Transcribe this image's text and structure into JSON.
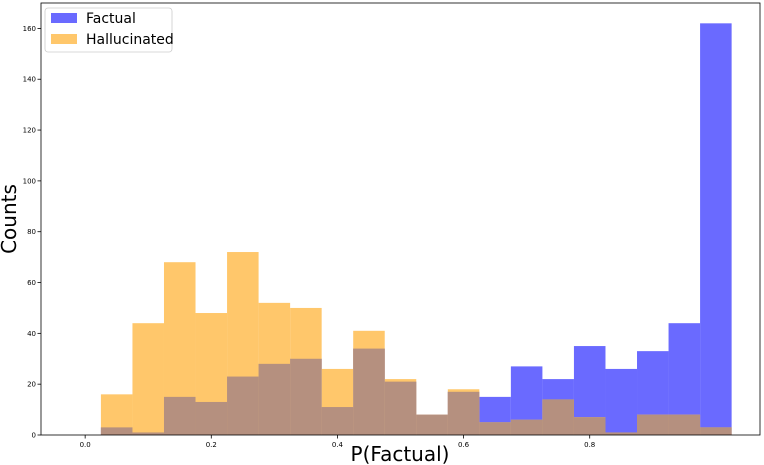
{
  "chart_data": {
    "type": "bar",
    "subtype": "overlapping-histogram",
    "title": "",
    "xlabel": "P(Factual)",
    "ylabel": "Counts",
    "xlim": [
      -0.07,
      1.07
    ],
    "ylim": [
      0,
      170
    ],
    "x_ticks": [
      "0.0",
      "0.2",
      "0.4",
      "0.6",
      "0.8"
    ],
    "y_ticks": [
      "0",
      "20",
      "40",
      "60",
      "80",
      "100",
      "120",
      "140",
      "160"
    ],
    "grid": false,
    "legend_position": "top-left",
    "bin_edges": [
      0.025,
      0.075,
      0.125,
      0.175,
      0.225,
      0.275,
      0.325,
      0.375,
      0.425,
      0.475,
      0.525,
      0.575,
      0.625,
      0.675,
      0.725,
      0.775,
      0.825,
      0.875,
      0.925,
      0.975,
      1.025
    ],
    "series": [
      {
        "name": "Factual",
        "color": "#6a6aff",
        "values": [
          3,
          1,
          15,
          13,
          23,
          28,
          30,
          11,
          34,
          21,
          8,
          17,
          15,
          27,
          22,
          35,
          26,
          33,
          44,
          162
        ]
      },
      {
        "name": "Hallucinated",
        "color": "#ffc76b",
        "values": [
          16,
          44,
          68,
          48,
          72,
          52,
          50,
          26,
          41,
          22,
          8,
          18,
          5,
          6,
          14,
          7,
          1,
          8,
          8,
          3
        ]
      }
    ]
  }
}
